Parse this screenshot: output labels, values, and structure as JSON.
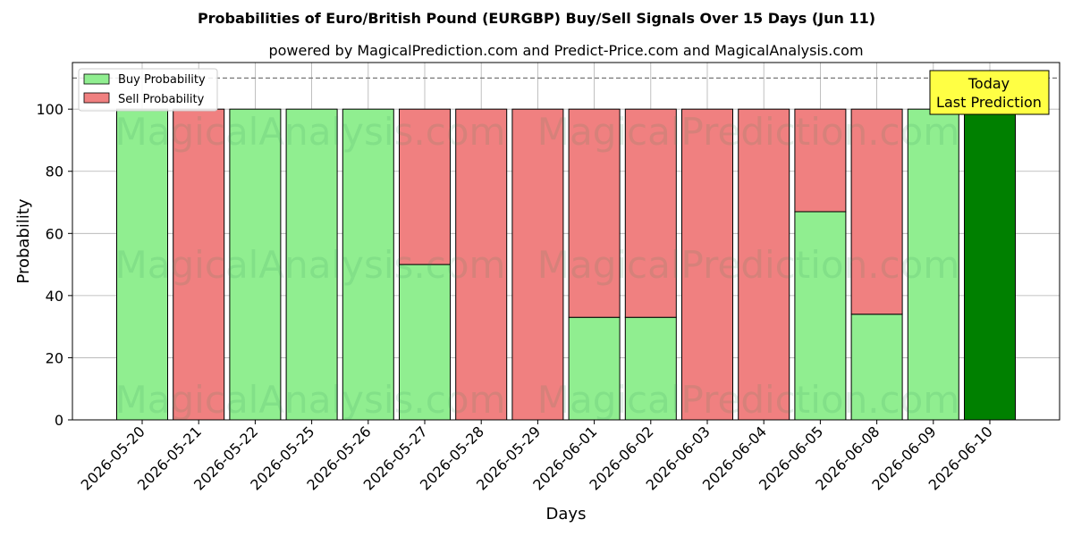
{
  "chart_data": {
    "type": "bar",
    "stacked": true,
    "title": "Probabilities of Euro/British Pound (EURGBP) Buy/Sell Signals Over 15 Days (Jun 11)",
    "subtitle": "powered by MagicalPrediction.com and Predict-Price.com and MagicalAnalysis.com",
    "xlabel": "Days",
    "ylabel": "Probability",
    "ylim": [
      0,
      115
    ],
    "yticks": [
      "0",
      "20",
      "40",
      "60",
      "80",
      "100"
    ],
    "reference_line": 110,
    "grid": true,
    "legend_position": "top-left",
    "categories": [
      "2026-05-20",
      "2026-05-21",
      "2026-05-22",
      "2026-05-25",
      "2026-05-26",
      "2026-05-27",
      "2026-05-28",
      "2026-05-29",
      "2026-06-01",
      "2026-06-02",
      "2026-06-03",
      "2026-06-04",
      "2026-06-05",
      "2026-06-08",
      "2026-06-09",
      "2026-06-10"
    ],
    "series": [
      {
        "name": "Buy Probability",
        "color": "#90ee90",
        "values": [
          100,
          0,
          100,
          100,
          100,
          50,
          0,
          0,
          33,
          33,
          0,
          0,
          67,
          34,
          100,
          100
        ]
      },
      {
        "name": "Sell Probability",
        "color": "#f08080",
        "values": [
          0,
          100,
          0,
          0,
          0,
          50,
          100,
          100,
          67,
          67,
          100,
          100,
          33,
          66,
          0,
          0
        ]
      }
    ],
    "highlight": {
      "category": "2026-06-10",
      "color": "#008000"
    },
    "annotation": {
      "line1": "Today",
      "line2": "Last Prediction",
      "color": "#ffff44"
    },
    "watermarks": [
      "MagicalAnalysis.com",
      "MagicalPrediction.com"
    ]
  }
}
